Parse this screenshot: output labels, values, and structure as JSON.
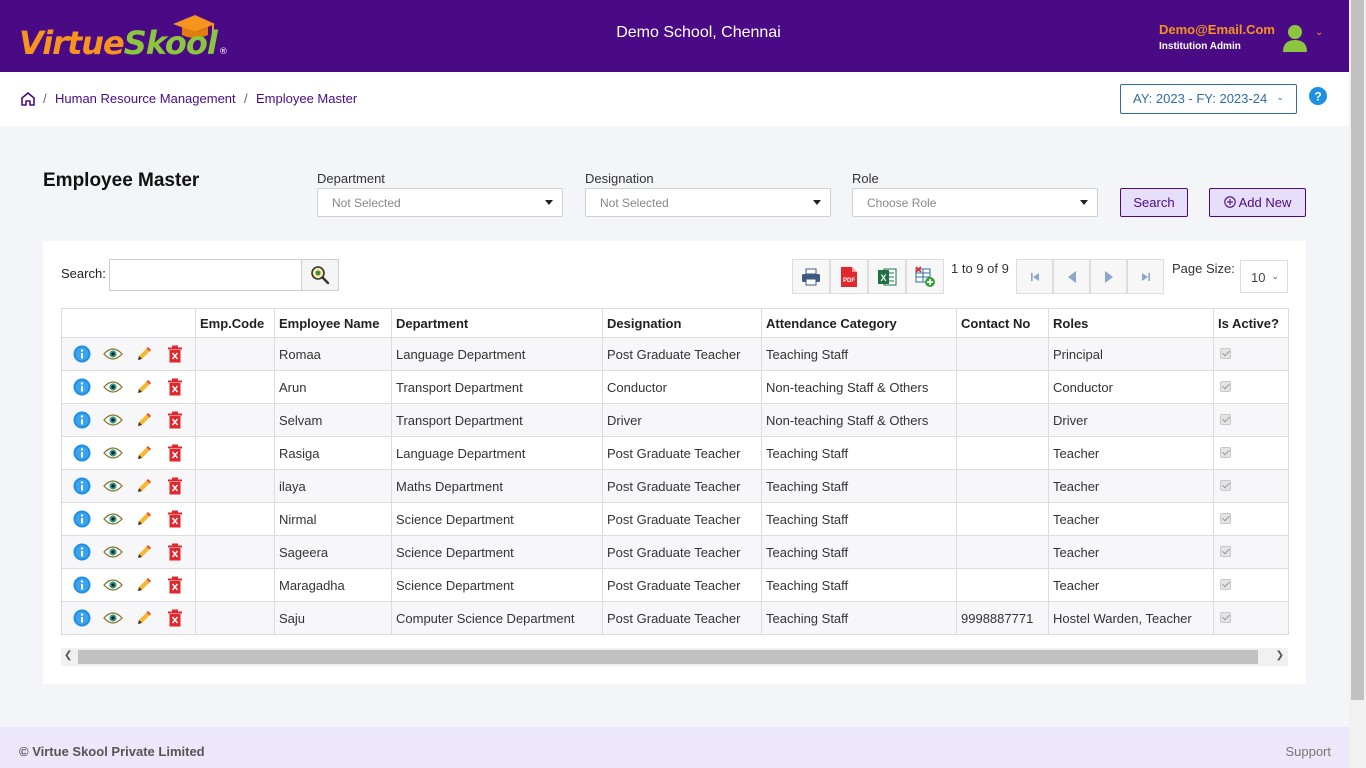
{
  "header": {
    "logo_virtue": "Virtue",
    "logo_skool": "Skool",
    "logo_reg": "®",
    "school_name": "Demo School, Chennai",
    "user_email": "Demo@Email.Com",
    "user_role": "Institution Admin"
  },
  "breadcrumb": {
    "items": [
      "Human Resource Management",
      "Employee Master"
    ],
    "separator": "/"
  },
  "academic_year": {
    "value": "AY: 2023 - FY: 2023-24"
  },
  "page": {
    "title": "Employee Master"
  },
  "filters": {
    "department": {
      "label": "Department",
      "value": "Not Selected"
    },
    "designation": {
      "label": "Designation",
      "value": "Not Selected"
    },
    "role": {
      "label": "Role",
      "value": "Choose Role"
    },
    "search_label": "Search",
    "add_label": "Add New"
  },
  "grid": {
    "search_label": "Search:",
    "search_value": "",
    "pager_info": "1 to 9 of 9",
    "page_size_label": "Page Size:",
    "page_size": "10",
    "columns": [
      "",
      "Emp.Code",
      "Employee Name",
      "Department",
      "Designation",
      "Attendance Category",
      "Contact No",
      "Roles",
      "Is Active?"
    ],
    "rows": [
      {
        "code": "",
        "name": "Romaa",
        "department": "Language Department",
        "designation": "Post Graduate Teacher",
        "category": "Teaching Staff",
        "contact": "",
        "roles": "Principal",
        "active": true
      },
      {
        "code": "",
        "name": "Arun",
        "department": "Transport Department",
        "designation": "Conductor",
        "category": "Non-teaching Staff & Others",
        "contact": "",
        "roles": "Conductor",
        "active": true
      },
      {
        "code": "",
        "name": "Selvam",
        "department": "Transport Department",
        "designation": "Driver",
        "category": "Non-teaching Staff & Others",
        "contact": "",
        "roles": "Driver",
        "active": true
      },
      {
        "code": "",
        "name": "Rasiga",
        "department": "Language Department",
        "designation": "Post Graduate Teacher",
        "category": "Teaching Staff",
        "contact": "",
        "roles": "Teacher",
        "active": true
      },
      {
        "code": "",
        "name": "ilaya",
        "department": "Maths Department",
        "designation": "Post Graduate Teacher",
        "category": "Teaching Staff",
        "contact": "",
        "roles": "Teacher",
        "active": true
      },
      {
        "code": "",
        "name": "Nirmal",
        "department": "Science Department",
        "designation": "Post Graduate Teacher",
        "category": "Teaching Staff",
        "contact": "",
        "roles": "Teacher",
        "active": true
      },
      {
        "code": "",
        "name": "Sageera",
        "department": "Science Department",
        "designation": "Post Graduate Teacher",
        "category": "Teaching Staff",
        "contact": "",
        "roles": "Teacher",
        "active": true
      },
      {
        "code": "",
        "name": "Maragadha",
        "department": "Science Department",
        "designation": "Post Graduate Teacher",
        "category": "Teaching Staff",
        "contact": "",
        "roles": "Teacher",
        "active": true
      },
      {
        "code": "",
        "name": "Saju",
        "department": "Computer Science Department",
        "designation": "Post Graduate Teacher",
        "category": "Teaching Staff",
        "contact": "9998887771",
        "roles": "Hostel Warden, Teacher",
        "active": true
      }
    ]
  },
  "footer": {
    "copyright": "© Virtue Skool Private Limited",
    "support": "Support"
  },
  "colors": {
    "brand_purple": "#4a0a85",
    "brand_orange": "#f7941d",
    "brand_green": "#8cc63f"
  }
}
